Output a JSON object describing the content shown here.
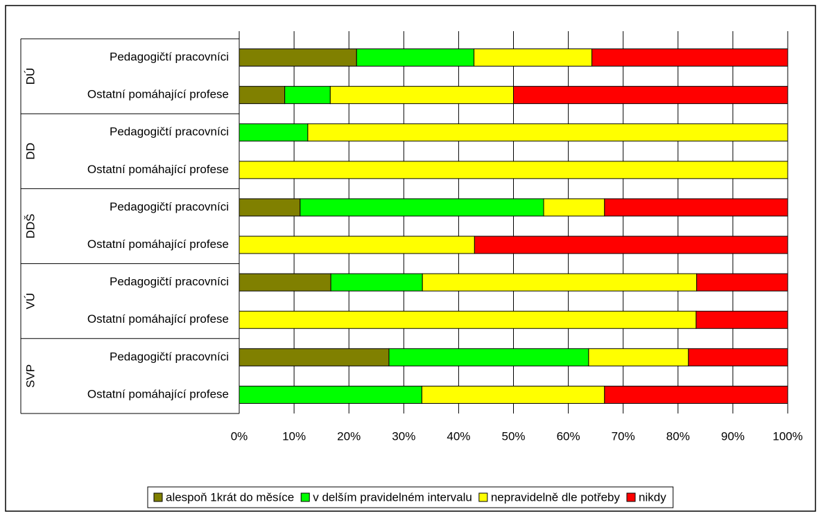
{
  "chart_data": {
    "type": "stacked-bar-horizontal",
    "groups": [
      "DÚ",
      "DD",
      "DDŠ",
      "VÚ",
      "SVP"
    ],
    "categories": [
      "Pedagogičtí pracovníci",
      "Ostatní pomáhající profese",
      "Pedagogičtí pracovníci",
      "Ostatní pomáhající profese",
      "Pedagogičtí pracovníci",
      "Ostatní pomáhající profese",
      "Pedagogičtí pracovníci",
      "Ostatní pomáhající profese",
      "Pedagogičtí pracovníci",
      "Ostatní pomáhající profese"
    ],
    "series": [
      {
        "name": "alespoň 1krát do měsíce",
        "color": "#808000",
        "values": [
          21.4,
          8.3,
          0,
          0,
          11.1,
          0,
          16.7,
          0,
          27.3,
          0
        ]
      },
      {
        "name": "v delším pravidelném intervalu",
        "color": "#00ff00",
        "values": [
          21.4,
          8.3,
          12.5,
          0,
          44.4,
          0,
          16.7,
          0,
          36.4,
          33.3
        ]
      },
      {
        "name": "nepravidelně dle potřeby",
        "color": "#ffff00",
        "values": [
          21.5,
          33.4,
          87.5,
          100,
          11.1,
          42.9,
          50,
          83.3,
          18.2,
          33.3
        ]
      },
      {
        "name": "nikdy",
        "color": "#ff0000",
        "values": [
          35.7,
          50,
          0,
          0,
          33.4,
          57.1,
          16.6,
          16.7,
          18.1,
          33.4
        ]
      }
    ],
    "xlim": [
      0,
      100
    ],
    "xticks": [
      {
        "value": 0,
        "label": "0%"
      },
      {
        "value": 10,
        "label": "10%"
      },
      {
        "value": 20,
        "label": "20%"
      },
      {
        "value": 30,
        "label": "30%"
      },
      {
        "value": 40,
        "label": "40%"
      },
      {
        "value": 50,
        "label": "50%"
      },
      {
        "value": 60,
        "label": "60%"
      },
      {
        "value": 70,
        "label": "70%"
      },
      {
        "value": 80,
        "label": "80%"
      },
      {
        "value": 90,
        "label": "90%"
      },
      {
        "value": 100,
        "label": "100%"
      }
    ],
    "grid": true,
    "legend": "bottom"
  }
}
